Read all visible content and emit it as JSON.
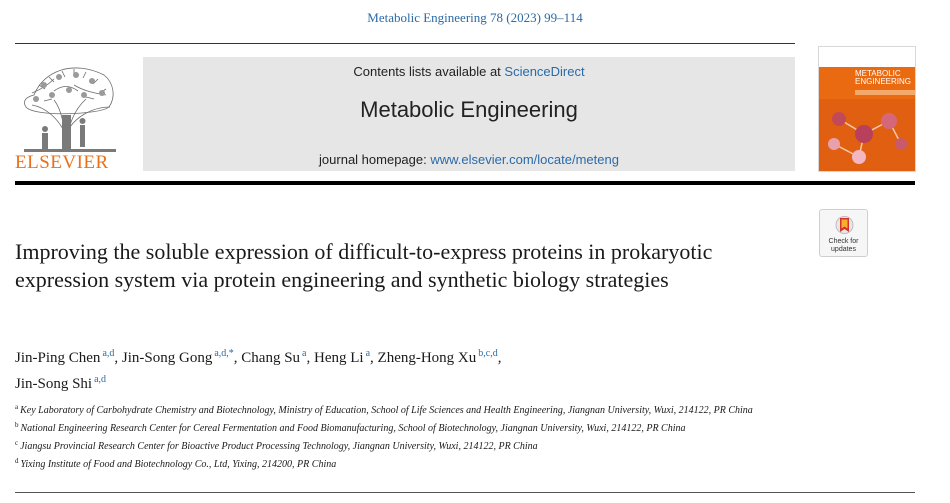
{
  "citation": "Metabolic Engineering 78 (2023) 99–114",
  "publisher": {
    "logo_text": "ELSEVIER"
  },
  "header": {
    "contents_prefix": "Contents lists available at ",
    "contents_link": "ScienceDirect",
    "journal_name": "Metabolic Engineering",
    "homepage_prefix": "journal homepage: ",
    "homepage_link": "www.elsevier.com/locate/meteng"
  },
  "cover": {
    "title": "METABOLIC ENGINEERING"
  },
  "check_updates": {
    "label": "Check for updates"
  },
  "title": "Improving the soluble expression of difficult-to-express proteins in prokaryotic expression system via protein engineering and synthetic biology strategies",
  "authors": [
    {
      "name": "Jin-Ping Chen",
      "sup": "a,d",
      "sep": ", "
    },
    {
      "name": "Jin-Song Gong",
      "sup": "a,d,*",
      "sep": ", "
    },
    {
      "name": "Chang Su",
      "sup": "a",
      "sep": ", "
    },
    {
      "name": "Heng Li",
      "sup": "a",
      "sep": ", "
    },
    {
      "name": "Zheng-Hong Xu",
      "sup": "b,c,d",
      "sep": ", "
    },
    {
      "name": "Jin-Song Shi",
      "sup": "a,d",
      "sep": ""
    }
  ],
  "affiliations": [
    {
      "key": "a",
      "text": "Key Laboratory of Carbohydrate Chemistry and Biotechnology, Ministry of Education, School of Life Sciences and Health Engineering, Jiangnan University, Wuxi, 214122, PR China"
    },
    {
      "key": "b",
      "text": "National Engineering Research Center for Cereal Fermentation and Food Biomanufacturing, School of Biotechnology, Jiangnan University, Wuxi, 214122, PR China"
    },
    {
      "key": "c",
      "text": "Jiangsu Provincial Research Center for Bioactive Product Processing Technology, Jiangnan University, Wuxi, 214122, PR China"
    },
    {
      "key": "d",
      "text": "Yixing Institute of Food and Biotechnology Co., Ltd, Yixing, 214200, PR China"
    }
  ],
  "colors": {
    "link": "#2a6aa8",
    "elsevier_orange": "#e9711c",
    "cover_orange": "#ea6a12",
    "header_bg": "#e6e6e6"
  }
}
